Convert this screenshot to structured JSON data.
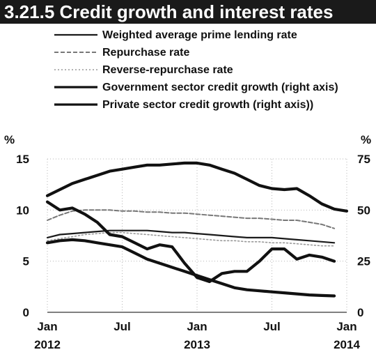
{
  "chart_data": {
    "type": "line",
    "title": "3.21.5 Credit growth and interest rates",
    "x_ticks": [
      {
        "date": "2012-01",
        "label": "Jan",
        "sublabel": "2012"
      },
      {
        "date": "2012-07",
        "label": "Jul",
        "sublabel": ""
      },
      {
        "date": "2013-01",
        "label": "Jan",
        "sublabel": "2013"
      },
      {
        "date": "2013-07",
        "label": "Jul",
        "sublabel": ""
      },
      {
        "date": "2014-01",
        "label": "Jan",
        "sublabel": "2014"
      }
    ],
    "xlim": [
      "2012-01",
      "2014-01"
    ],
    "left_axis": {
      "unit": "%",
      "ylim": [
        0,
        15
      ],
      "ticks": [
        0,
        5,
        10,
        15
      ]
    },
    "right_axis": {
      "unit": "%",
      "ylim": [
        0,
        75
      ],
      "ticks": [
        0,
        25,
        50,
        75
      ]
    },
    "grid": true,
    "legend_position": "top",
    "series": [
      {
        "name": "Weighted average prime lending rate",
        "axis": "left",
        "color": "#1a1a1a",
        "style": "solid-thin",
        "x": [
          "2012-01",
          "2012-02",
          "2012-03",
          "2012-04",
          "2012-05",
          "2012-06",
          "2012-07",
          "2012-08",
          "2012-09",
          "2012-10",
          "2012-11",
          "2012-12",
          "2013-01",
          "2013-02",
          "2013-03",
          "2013-04",
          "2013-05",
          "2013-06",
          "2013-07",
          "2013-08",
          "2013-09",
          "2013-10",
          "2013-11",
          "2013-12"
        ],
        "y": [
          7.3,
          7.6,
          7.7,
          7.8,
          7.9,
          8.0,
          8.0,
          8.0,
          8.0,
          7.9,
          7.8,
          7.8,
          7.7,
          7.6,
          7.5,
          7.4,
          7.3,
          7.3,
          7.3,
          7.2,
          7.1,
          7.0,
          6.9,
          6.8
        ]
      },
      {
        "name": "Repurchase rate",
        "axis": "left",
        "color": "#777777",
        "style": "dashed",
        "x": [
          "2012-01",
          "2012-02",
          "2012-03",
          "2012-04",
          "2012-05",
          "2012-06",
          "2012-07",
          "2012-08",
          "2012-09",
          "2012-10",
          "2012-11",
          "2012-12",
          "2013-01",
          "2013-02",
          "2013-03",
          "2013-04",
          "2013-05",
          "2013-06",
          "2013-07",
          "2013-08",
          "2013-09",
          "2013-10",
          "2013-11",
          "2013-12"
        ],
        "y": [
          9.0,
          9.5,
          9.9,
          10.0,
          10.0,
          10.0,
          9.9,
          9.9,
          9.8,
          9.8,
          9.7,
          9.7,
          9.6,
          9.5,
          9.4,
          9.3,
          9.2,
          9.2,
          9.1,
          9.0,
          9.0,
          8.8,
          8.6,
          8.2
        ]
      },
      {
        "name": "Reverse-repurchase rate",
        "axis": "left",
        "color": "#999999",
        "style": "dotted",
        "x": [
          "2012-01",
          "2012-02",
          "2012-03",
          "2012-04",
          "2012-05",
          "2012-06",
          "2012-07",
          "2012-08",
          "2012-09",
          "2012-10",
          "2012-11",
          "2012-12",
          "2013-01",
          "2013-02",
          "2013-03",
          "2013-04",
          "2013-05",
          "2013-06",
          "2013-07",
          "2013-08",
          "2013-09",
          "2013-10",
          "2013-11",
          "2013-12"
        ],
        "y": [
          7.0,
          7.2,
          7.4,
          7.6,
          7.7,
          7.8,
          7.8,
          7.7,
          7.6,
          7.5,
          7.4,
          7.3,
          7.2,
          7.1,
          7.0,
          7.0,
          6.9,
          6.9,
          6.8,
          6.8,
          6.7,
          6.6,
          6.5,
          6.5
        ]
      },
      {
        "name": "Government sector credit growth (right axis)",
        "axis": "right",
        "color": "#111111",
        "style": "solid-thick",
        "x": [
          "2012-01",
          "2012-02",
          "2012-03",
          "2012-04",
          "2012-05",
          "2012-06",
          "2012-07",
          "2012-08",
          "2012-09",
          "2012-10",
          "2012-11",
          "2012-12",
          "2013-01",
          "2013-02",
          "2013-03",
          "2013-04",
          "2013-05",
          "2013-06",
          "2013-07",
          "2013-08",
          "2013-09",
          "2013-10",
          "2013-11",
          "2013-12"
        ],
        "y": [
          54,
          50,
          51,
          48,
          44,
          38,
          37,
          34,
          31,
          33,
          32,
          24,
          17,
          15,
          19,
          20,
          20,
          25,
          31,
          31,
          26,
          28,
          27,
          25
        ]
      },
      {
        "name": "Private sector credit growth (right axis))",
        "axis": "right",
        "color": "#111111",
        "style": "solid-thick",
        "x": [
          "2012-01",
          "2012-02",
          "2012-03",
          "2012-04",
          "2012-05",
          "2012-06",
          "2012-07",
          "2012-08",
          "2012-09",
          "2012-10",
          "2012-11",
          "2012-12",
          "2013-01",
          "2013-02",
          "2013-03",
          "2013-04",
          "2013-05",
          "2013-06",
          "2013-07",
          "2013-08",
          "2013-09",
          "2013-10",
          "2013-11",
          "2013-12"
        ],
        "y": [
          34,
          35,
          35.5,
          35,
          34,
          33,
          32,
          29,
          26,
          24,
          22,
          20,
          18,
          16,
          14,
          12,
          11,
          10.5,
          10,
          9.5,
          9,
          8.5,
          8.2,
          8
        ]
      },
      {
        "name": "",
        "axis": "right",
        "color": "#111111",
        "style": "solid-thick",
        "x": [
          "2012-01",
          "2012-02",
          "2012-03",
          "2012-04",
          "2012-05",
          "2012-06",
          "2012-07",
          "2012-08",
          "2012-09",
          "2012-10",
          "2012-11",
          "2012-12",
          "2013-01",
          "2013-02",
          "2013-03",
          "2013-04",
          "2013-05",
          "2013-06",
          "2013-07",
          "2013-08",
          "2013-09",
          "2013-10",
          "2013-11",
          "2013-12",
          "2014-01"
        ],
        "y": [
          57,
          60,
          63,
          65,
          67,
          69,
          70,
          71,
          72,
          72,
          72.5,
          73,
          73,
          72,
          70,
          68,
          65,
          62,
          60.5,
          60,
          60.5,
          57,
          53,
          50.5,
          49.5
        ]
      }
    ]
  }
}
